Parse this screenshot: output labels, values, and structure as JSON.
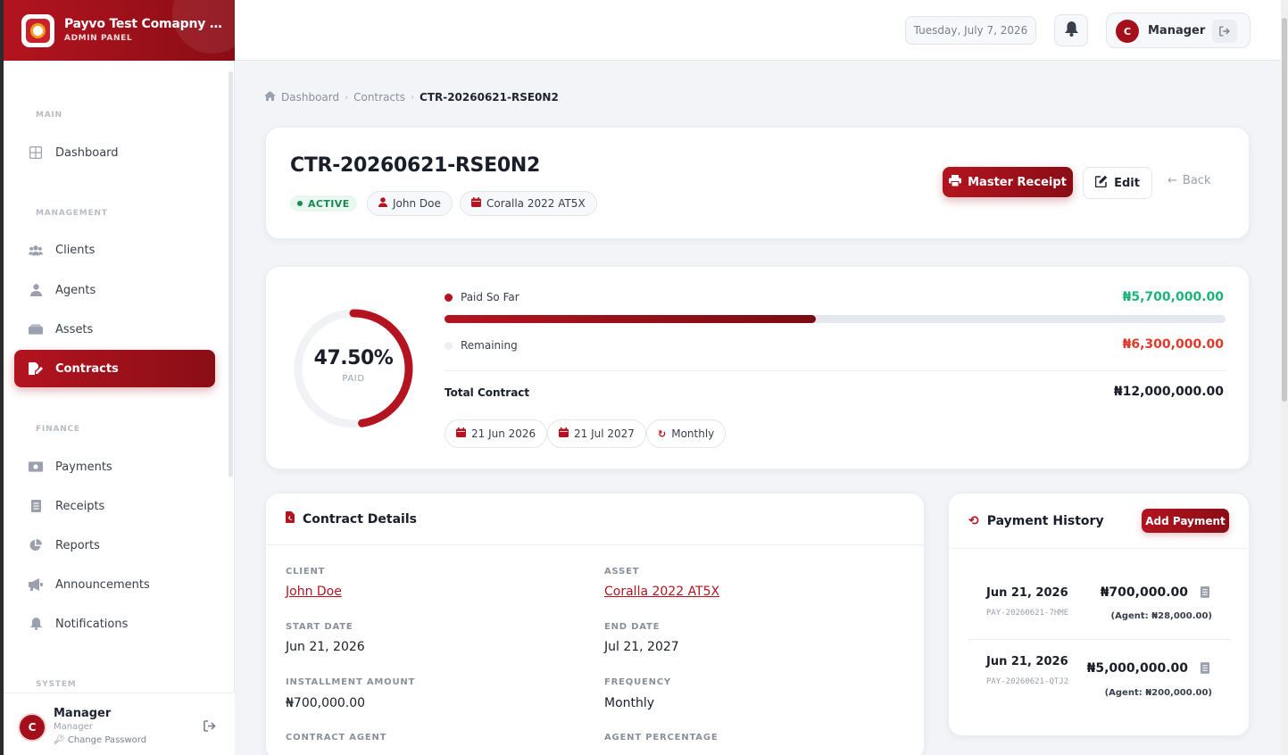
{
  "brand": {
    "name": "Payvo Test Comapny Li...",
    "subtitle": "ADMIN PANEL"
  },
  "sidebar": {
    "sections": {
      "main": "MAIN",
      "management": "MANAGEMENT",
      "finance": "FINANCE",
      "system": "SYSTEM"
    },
    "items": [
      {
        "label": "Dashboard",
        "icon": "grid-icon"
      },
      {
        "label": "Clients",
        "icon": "users-icon"
      },
      {
        "label": "Agents",
        "icon": "user-tie-icon"
      },
      {
        "label": "Assets",
        "icon": "box-icon"
      },
      {
        "label": "Contracts",
        "icon": "file-signature-icon",
        "active": true
      },
      {
        "label": "Payments",
        "icon": "money-icon"
      },
      {
        "label": "Receipts",
        "icon": "receipt-icon"
      },
      {
        "label": "Reports",
        "icon": "pie-chart-icon"
      },
      {
        "label": "Announcements",
        "icon": "megaphone-icon"
      },
      {
        "label": "Notifications",
        "icon": "bell-icon"
      }
    ],
    "user": {
      "avatar": "C",
      "name": "Manager",
      "role": "Manager",
      "change_password": "Change Password"
    }
  },
  "topbar": {
    "date": "Tuesday, July 7, 2026",
    "user_avatar": "C",
    "user_name": "Manager"
  },
  "breadcrumb": {
    "home": "Dashboard",
    "section": "Contracts",
    "current": "CTR-20260621-RSE0N2"
  },
  "contract": {
    "id": "CTR-20260621-RSE0N2",
    "status": "ACTIVE",
    "client_chip": "John Doe",
    "asset_chip": "Coralla 2022 AT5X",
    "actions": {
      "master_receipt": "Master Receipt",
      "edit": "Edit",
      "back": "Back"
    }
  },
  "progress": {
    "percent": 47.5,
    "percent_label": "47.50%",
    "paid_caption": "PAID",
    "paid_label": "Paid So Far",
    "paid_amount": "₦5,700,000.00",
    "remaining_label": "Remaining",
    "remaining_amount": "₦6,300,000.00",
    "total_label": "Total Contract",
    "total_amount": "₦12,000,000.00",
    "start_chip": "21 Jun 2026",
    "end_chip": "21 Jul 2027",
    "frequency_chip": "Monthly",
    "colors": {
      "paid": "#b3141f",
      "remaining_amount": "#e0392b",
      "paid_amount": "#1fb27a"
    }
  },
  "details": {
    "title": "Contract Details",
    "client_label": "CLIENT",
    "client_value": "John Doe",
    "asset_label": "ASSET",
    "asset_value": "Coralla 2022 AT5X",
    "start_label": "START DATE",
    "start_value": "Jun 21, 2026",
    "end_label": "END DATE",
    "end_value": "Jul 21, 2027",
    "installment_label": "INSTALLMENT AMOUNT",
    "installment_value": "₦700,000.00",
    "frequency_label": "FREQUENCY",
    "frequency_value": "Monthly",
    "agent_label": "CONTRACT AGENT",
    "agent_pct_label": "AGENT PERCENTAGE"
  },
  "history": {
    "title": "Payment History",
    "add_button": "Add Payment",
    "payments": [
      {
        "date": "Jun 21, 2026",
        "ref": "PAY-20260621-7HME",
        "amount": "₦700,000.00",
        "agent": "(Agent: ₦28,000.00)"
      },
      {
        "date": "Jun 21, 2026",
        "ref": "PAY-20260621-QTJ2",
        "amount": "₦5,000,000.00",
        "agent": "(Agent: ₦200,000.00)"
      }
    ]
  }
}
